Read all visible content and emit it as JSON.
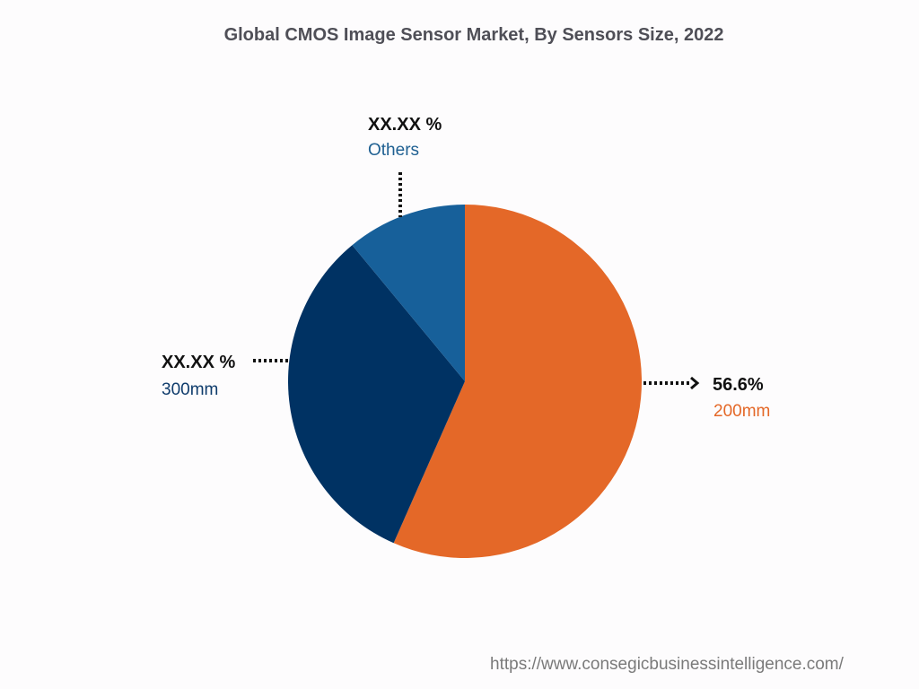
{
  "chart_data": {
    "type": "pie",
    "title": "Global CMOS Image Sensor Market, By Sensors Size, 2022",
    "slices": [
      {
        "name": "200mm",
        "value": 56.6,
        "value_label": "56.6%",
        "color": "#e46828"
      },
      {
        "name": "300mm",
        "value": 32.4,
        "value_label": "XX.XX %",
        "color": "#003263"
      },
      {
        "name": "Others",
        "value": 11.0,
        "value_label": "XX.XX %",
        "color": "#17609a"
      }
    ],
    "start_angle": "12 o'clock",
    "direction": "clockwise",
    "legend": "none"
  },
  "source_url": "https://www.consegicbusinessintelligence.com/"
}
